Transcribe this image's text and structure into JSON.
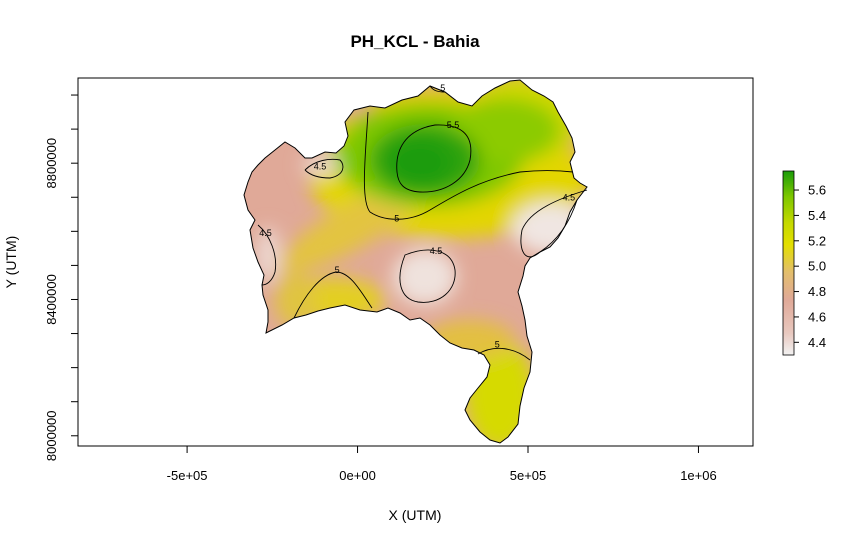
{
  "chart_data": {
    "type": "heatmap",
    "title": "PH_KCL - Bahia",
    "xlabel": "X (UTM)",
    "ylabel": "Y (UTM)",
    "xlim": [
      -820000,
      1160000
    ],
    "ylim": [
      7970000,
      9050000
    ],
    "x_ticks": [
      {
        "value": -500000,
        "label": "-5e+05"
      },
      {
        "value": 0,
        "label": "0e+00"
      },
      {
        "value": 500000,
        "label": "5e+05"
      },
      {
        "value": 1000000,
        "label": "1e+06"
      }
    ],
    "y_ticks": [
      {
        "value": 8000000,
        "label": "8000000"
      },
      {
        "value": 8400000,
        "label": "8400000"
      },
      {
        "value": 8800000,
        "label": "8800000"
      }
    ],
    "colorbar": {
      "range": [
        4.3,
        5.75
      ],
      "ticks": [
        "4.4",
        "4.6",
        "4.8",
        "5.0",
        "5.2",
        "5.4",
        "5.6"
      ],
      "tick_values": [
        4.4,
        4.6,
        4.8,
        5.0,
        5.2,
        5.4,
        5.6
      ],
      "colors": [
        "#f2f2f2",
        "#e0a998",
        "#e3be6c",
        "#e3df00",
        "#c4d900",
        "#7ec700",
        "#1a9c0a"
      ]
    },
    "contour_levels": [
      4.5,
      5,
      5.5
    ],
    "contour_labels": [
      {
        "text": "4.5",
        "x": -110000,
        "y": 8790000
      },
      {
        "text": "4.5",
        "x": -270000,
        "y": 8595000
      },
      {
        "text": "4.5",
        "x": 230000,
        "y": 8542000
      },
      {
        "text": "4.5",
        "x": 620000,
        "y": 8700000
      },
      {
        "text": "5",
        "x": 250000,
        "y": 9020000
      },
      {
        "text": "5",
        "x": 115000,
        "y": 8638000
      },
      {
        "text": "5",
        "x": -60000,
        "y": 8487000
      },
      {
        "text": "5",
        "x": 410000,
        "y": 8268000
      },
      {
        "text": "5.5",
        "x": 280000,
        "y": 8912000
      }
    ],
    "region": "Bahia"
  }
}
